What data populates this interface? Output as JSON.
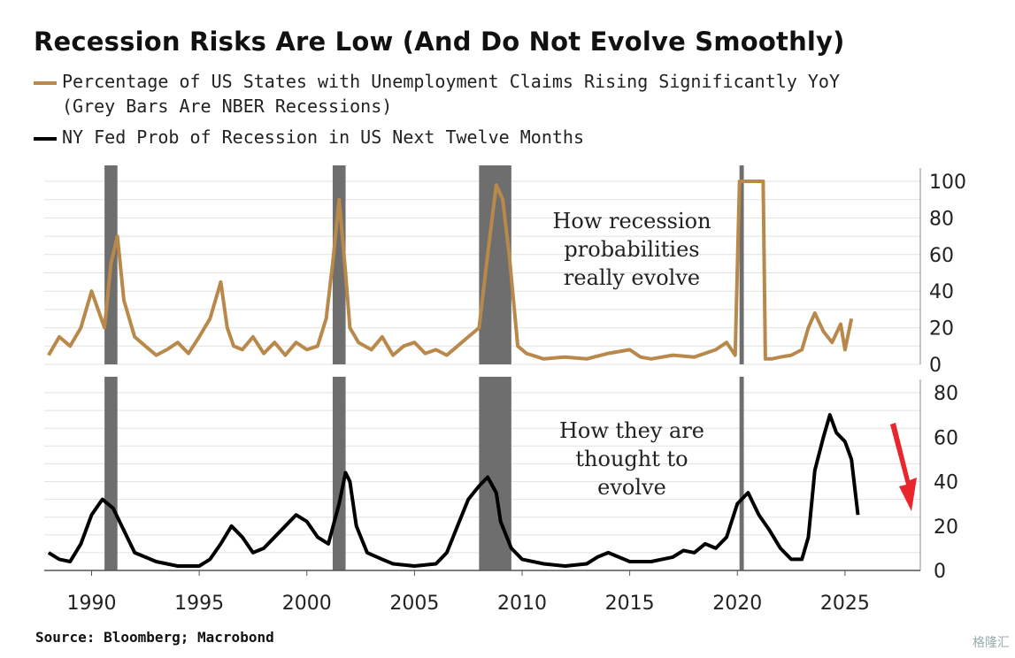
{
  "title": "Recession Risks Are Low (And Do Not Evolve Smoothly)",
  "legend": {
    "series1": "Percentage of US States with Unemployment Claims Rising Significantly YoY",
    "series1_note": "(Grey Bars Are NBER Recessions)",
    "series2": "NY Fed Prob of Recession in US Next Twelve Months"
  },
  "source": "Source: Bloomberg; Macrobond",
  "watermark": "格隆汇",
  "colors": {
    "series1": "#b8894a",
    "series2": "#000000",
    "recession": "#6e6e6e",
    "arrow": "#e8262b"
  },
  "chart_data": [
    {
      "type": "line",
      "annotation": [
        "How recession",
        "probabilities",
        "really evolve"
      ],
      "ylim": [
        0,
        100
      ],
      "yticks": [
        0,
        20,
        40,
        60,
        80,
        100
      ],
      "xticks": [
        1990,
        1995,
        2000,
        2005,
        2010,
        2015,
        2020,
        2025
      ],
      "xlim": [
        1987.8,
        2028.5
      ],
      "recessions": [
        [
          1990.6,
          1991.2
        ],
        [
          2001.2,
          2001.8
        ],
        [
          2008.0,
          2009.5
        ],
        [
          2020.1,
          2020.3
        ]
      ],
      "series": [
        {
          "x": [
            1988,
            1988.5,
            1989,
            1989.5,
            1990,
            1990.3,
            1990.6,
            1990.9,
            1991.2,
            1991.5,
            1992,
            1992.5,
            1993,
            1993.5,
            1994,
            1994.5,
            1995,
            1995.5,
            1996,
            1996.3,
            1996.6,
            1997,
            1997.5,
            1998,
            1998.5,
            1999,
            1999.5,
            2000,
            2000.5,
            2000.9,
            2001.2,
            2001.5,
            2001.8,
            2002,
            2002.4,
            2003,
            2003.5,
            2004,
            2004.5,
            2005,
            2005.5,
            2006,
            2006.5,
            2007,
            2007.5,
            2008,
            2008.4,
            2008.8,
            2009.1,
            2009.4,
            2009.8,
            2010.2,
            2011,
            2012,
            2013,
            2014,
            2015,
            2015.5,
            2016,
            2017,
            2018,
            2019,
            2019.5,
            2019.9,
            2020.1,
            2020.2,
            2020.6,
            2021,
            2021.2,
            2021.3,
            2021.6,
            2022,
            2022.5,
            2023,
            2023.3,
            2023.6,
            2024,
            2024.4,
            2024.8,
            2025,
            2025.3
          ],
          "y": [
            5,
            15,
            10,
            20,
            40,
            30,
            20,
            55,
            70,
            35,
            15,
            10,
            5,
            8,
            12,
            6,
            15,
            25,
            45,
            20,
            10,
            8,
            15,
            6,
            12,
            5,
            12,
            8,
            10,
            25,
            55,
            90,
            50,
            20,
            12,
            8,
            15,
            5,
            10,
            12,
            6,
            8,
            5,
            10,
            15,
            20,
            60,
            98,
            90,
            60,
            10,
            6,
            3,
            4,
            3,
            6,
            8,
            4,
            3,
            5,
            4,
            8,
            12,
            5,
            100,
            100,
            100,
            100,
            100,
            3,
            3,
            4,
            5,
            8,
            20,
            28,
            18,
            12,
            22,
            8,
            25
          ]
        }
      ]
    },
    {
      "type": "line",
      "annotation": [
        "How they are",
        "thought to",
        "evolve"
      ],
      "ylim": [
        0,
        80
      ],
      "yticks": [
        0,
        20,
        40,
        60,
        80
      ],
      "xticks": [
        1990,
        1995,
        2000,
        2005,
        2010,
        2015,
        2020,
        2025
      ],
      "xlim": [
        1987.8,
        2028.5
      ],
      "recessions": [
        [
          1990.6,
          1991.2
        ],
        [
          2001.2,
          2001.8
        ],
        [
          2008.0,
          2009.5
        ],
        [
          2020.1,
          2020.3
        ]
      ],
      "series": [
        {
          "x": [
            1988,
            1988.5,
            1989,
            1989.5,
            1990,
            1990.5,
            1991,
            1991.5,
            1992,
            1993,
            1994,
            1995,
            1995.5,
            1996,
            1996.5,
            1997,
            1997.5,
            1998,
            1998.5,
            1999,
            1999.5,
            2000,
            2000.5,
            2001,
            2001.5,
            2001.8,
            2002,
            2002.3,
            2002.8,
            2003.5,
            2004,
            2005,
            2006,
            2006.5,
            2007,
            2007.5,
            2008,
            2008.4,
            2008.8,
            2009,
            2009.5,
            2010,
            2011,
            2012,
            2013,
            2013.5,
            2014,
            2015,
            2016,
            2017,
            2017.5,
            2018,
            2018.5,
            2019,
            2019.5,
            2020,
            2020.5,
            2021,
            2021.5,
            2022,
            2022.5,
            2023,
            2023.3,
            2023.6,
            2024,
            2024.3,
            2024.6,
            2025,
            2025.3,
            2025.6
          ],
          "y": [
            8,
            5,
            4,
            12,
            25,
            32,
            28,
            18,
            8,
            4,
            2,
            2,
            5,
            12,
            20,
            15,
            8,
            10,
            15,
            20,
            25,
            22,
            15,
            12,
            30,
            44,
            40,
            20,
            8,
            5,
            3,
            2,
            3,
            8,
            20,
            32,
            38,
            42,
            35,
            22,
            10,
            5,
            3,
            2,
            3,
            6,
            8,
            4,
            4,
            6,
            9,
            8,
            12,
            10,
            15,
            30,
            35,
            25,
            18,
            10,
            5,
            5,
            15,
            45,
            60,
            70,
            62,
            58,
            50,
            25
          ]
        }
      ]
    }
  ]
}
